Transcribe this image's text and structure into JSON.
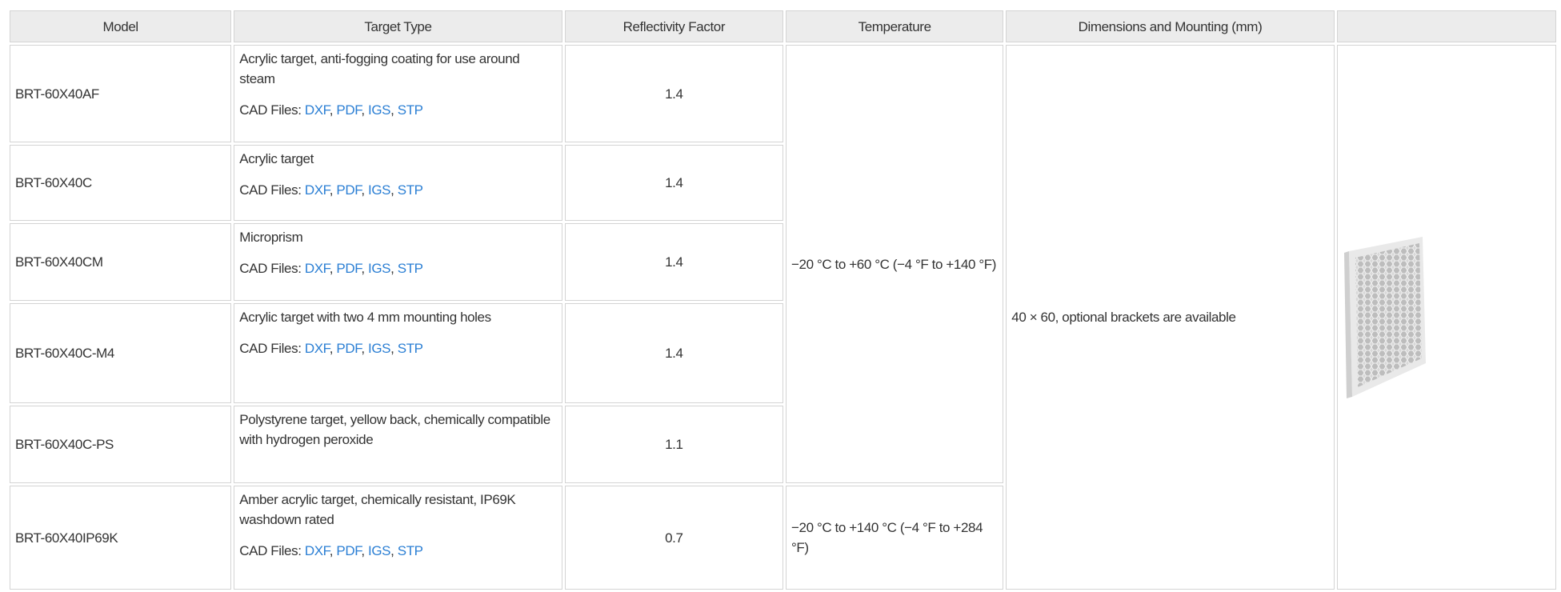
{
  "table": {
    "header": [
      "Model",
      "Target Type",
      "Reflectivity Factor",
      "Temperature",
      "Dimensions and Mounting (mm)",
      ""
    ],
    "cad_label": "CAD Files:",
    "cad_separator": ",",
    "cad_links": [
      "DXF",
      "PDF",
      "IGS",
      "STP"
    ],
    "rows": [
      {
        "model": "BRT-60X40AF",
        "target_type": "Acrylic target, anti-fogging coating for use around steam",
        "cad": true,
        "reflectivity": "1.4"
      },
      {
        "model": "BRT-60X40C",
        "target_type": "Acrylic target",
        "cad": true,
        "reflectivity": "1.4"
      },
      {
        "model": "BRT-60X40CM",
        "target_type": "Microprism",
        "cad": true,
        "reflectivity": "1.4"
      },
      {
        "model": "BRT-60X40C-M4",
        "target_type": "Acrylic target with two 4 mm mounting holes",
        "cad": true,
        "reflectivity": "1.4"
      },
      {
        "model": "BRT-60X40C-PS",
        "target_type": "Polystyrene target, yellow back, chemically compatible with hydrogen peroxide",
        "cad": false,
        "reflectivity": "1.1"
      },
      {
        "model": "BRT-60X40IP69K",
        "target_type": "Amber acrylic target, chemically resistant, IP69K washdown rated",
        "cad": true,
        "reflectivity": "0.7"
      }
    ],
    "temperatures": [
      "−20 °C to +60 °C (−4 °F to +140 °F)",
      "−20 °C to +140 °C (−4 °F to +284 °F)"
    ],
    "dimensions": "40 × 60, optional brackets are available"
  }
}
